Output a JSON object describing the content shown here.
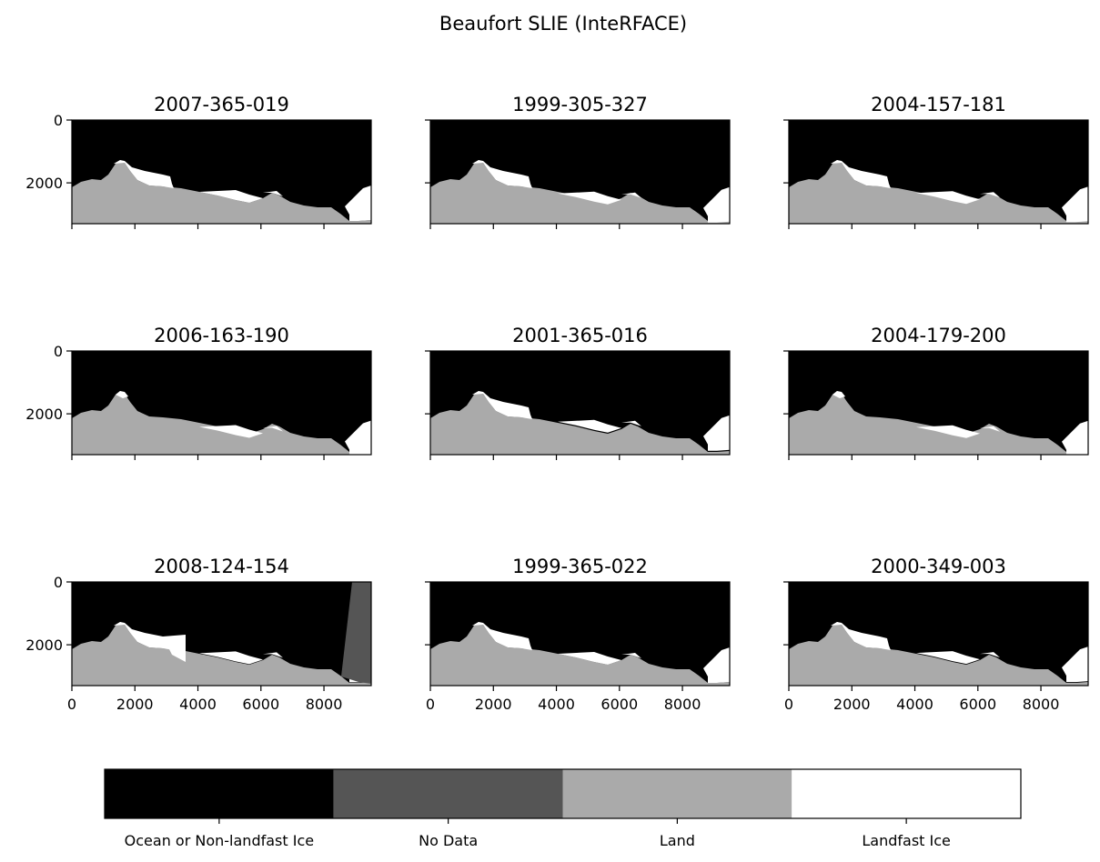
{
  "chart_data": {
    "type": "heatmap",
    "title": "Beaufort SLIE (InteRFACE)",
    "xlim": [
      0,
      9500
    ],
    "ylim": [
      3300,
      0
    ],
    "xticks": [
      0,
      2000,
      4000,
      6000,
      8000
    ],
    "yticks": [
      0,
      2000
    ],
    "shared_x": true,
    "shared_y": true,
    "grid": false,
    "panels": [
      {
        "title": "2007-365-019"
      },
      {
        "title": "1999-305-327"
      },
      {
        "title": "2004-157-181"
      },
      {
        "title": "2006-163-190"
      },
      {
        "title": "2001-365-016"
      },
      {
        "title": "2004-179-200"
      },
      {
        "title": "2008-124-154"
      },
      {
        "title": "1999-365-022"
      },
      {
        "title": "2000-349-003"
      }
    ],
    "colorbar": {
      "placement": "bottom",
      "categories": [
        {
          "label": "Ocean or Non-landfast Ice",
          "color": "#000000"
        },
        {
          "label": "No Data",
          "color": "#555555"
        },
        {
          "label": "Land",
          "color": "#aaaaaa"
        },
        {
          "label": "Landfast Ice",
          "color": "#ffffff"
        }
      ]
    }
  }
}
